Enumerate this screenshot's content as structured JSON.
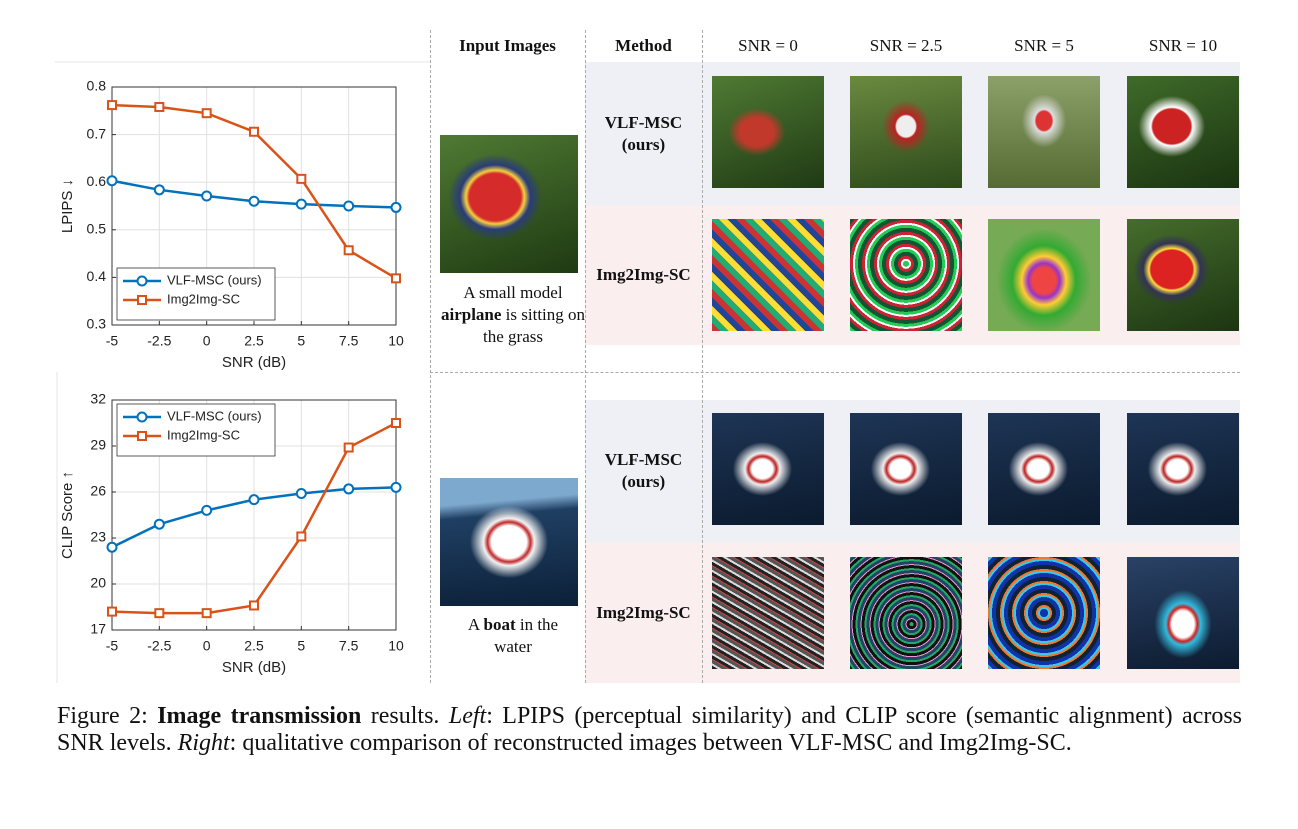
{
  "chart_data": [
    {
      "type": "line",
      "xlabel": "SNR (dB)",
      "ylabel": "LPIPS ↓",
      "x": [
        -5,
        -2.5,
        0,
        2.5,
        5,
        7.5,
        10
      ],
      "xlim": [
        -5,
        10
      ],
      "xticks": [
        -5,
        -2.5,
        0,
        2.5,
        5,
        7.5,
        10
      ],
      "ylim": [
        0.3,
        0.8
      ],
      "yticks": [
        0.3,
        0.4,
        0.5,
        0.6,
        0.7,
        0.8
      ],
      "grid": true,
      "legend": "lower left",
      "series": [
        {
          "name": "VLF-MSC (ours)",
          "color": "#0072bd",
          "marker": "circle",
          "values": [
            0.603,
            0.584,
            0.571,
            0.56,
            0.554,
            0.55,
            0.547
          ]
        },
        {
          "name": "Img2Img-SC",
          "color": "#d95319",
          "marker": "square",
          "values": [
            0.762,
            0.758,
            0.745,
            0.706,
            0.607,
            0.457,
            0.398
          ]
        }
      ]
    },
    {
      "type": "line",
      "xlabel": "SNR (dB)",
      "ylabel": "CLIP Score ↑",
      "x": [
        -5,
        -2.5,
        0,
        2.5,
        5,
        7.5,
        10
      ],
      "xlim": [
        -5,
        10
      ],
      "xticks": [
        -5,
        -2.5,
        0,
        2.5,
        5,
        7.5,
        10
      ],
      "ylim": [
        17,
        32
      ],
      "yticks": [
        17,
        20,
        23,
        26,
        29,
        32
      ],
      "grid": true,
      "legend": "upper left",
      "series": [
        {
          "name": "VLF-MSC (ours)",
          "color": "#0072bd",
          "marker": "circle",
          "values": [
            22.4,
            23.9,
            24.8,
            25.5,
            25.9,
            26.2,
            26.3
          ]
        },
        {
          "name": "Img2Img-SC",
          "color": "#d95319",
          "marker": "square",
          "values": [
            18.2,
            18.1,
            18.1,
            18.6,
            23.1,
            28.9,
            30.5
          ]
        }
      ]
    }
  ],
  "qualitative": {
    "headers": [
      "Input Images",
      "Method",
      "SNR = 0",
      "SNR = 2.5",
      "SNR = 5",
      "SNR = 10"
    ],
    "groups": [
      {
        "caption": [
          "A small model ",
          "airplane",
          " is sitting on the grass"
        ],
        "rows": [
          {
            "method": "VLF-MSC (ours)"
          },
          {
            "method": "Img2Img-SC"
          }
        ]
      },
      {
        "caption": [
          "A ",
          "boat",
          " in the water"
        ],
        "rows": [
          {
            "method": "VLF-MSC (ours)"
          },
          {
            "method": "Img2Img-SC"
          }
        ]
      }
    ]
  },
  "caption": [
    "Figure 2: ",
    "Image transmission",
    " results. ",
    "Left",
    ": LPIPS (perceptual similarity) and CLIP score (semantic alignment) across SNR levels. ",
    "Right",
    ": qualitative comparison of reconstructed images between VLF-MSC and Img2Img-SC."
  ]
}
